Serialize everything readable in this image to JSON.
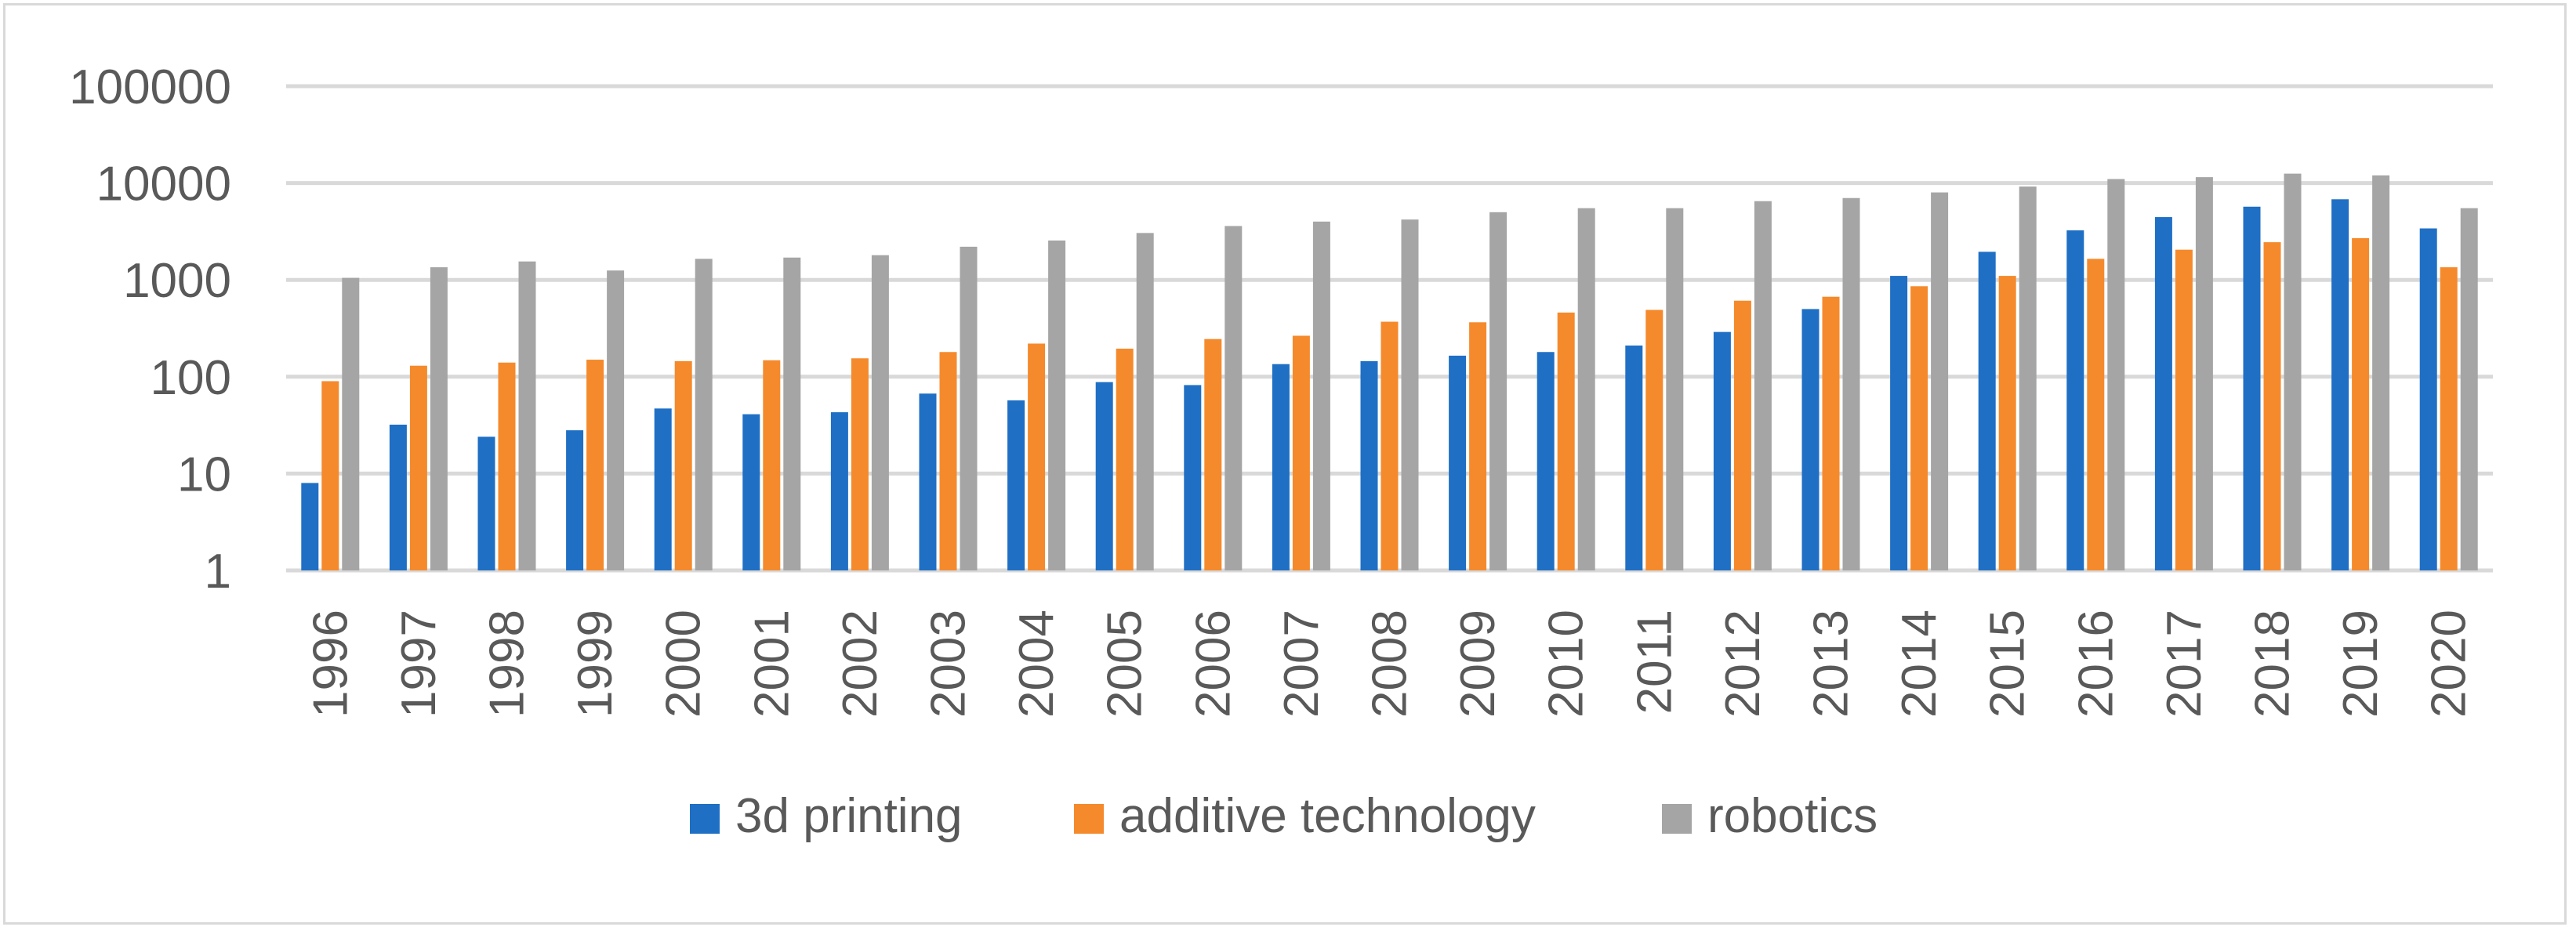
{
  "chart_data": {
    "type": "bar",
    "scale": "log",
    "title": "",
    "xlabel": "",
    "ylabel": "",
    "ylim": [
      1,
      100000
    ],
    "y_ticks": [
      1,
      10,
      100,
      1000,
      10000,
      100000
    ],
    "y_tick_labels": [
      "1",
      "10",
      "100",
      "1000",
      "10000",
      "100000"
    ],
    "grid": true,
    "legend_position": "bottom",
    "categories": [
      "1996",
      "1997",
      "1998",
      "1999",
      "2000",
      "2001",
      "2002",
      "2003",
      "2004",
      "2005",
      "2006",
      "2007",
      "2008",
      "2009",
      "2010",
      "2011",
      "2012",
      "2013",
      "2014",
      "2015",
      "2016",
      "2017",
      "2018",
      "2019",
      "2020"
    ],
    "series": [
      {
        "name": "3d printing",
        "color": "#1f6fc5",
        "values": [
          8,
          32,
          24,
          28,
          47,
          41,
          43,
          67,
          57,
          88,
          82,
          135,
          145,
          165,
          180,
          210,
          290,
          500,
          1100,
          1950,
          3250,
          4450,
          5700,
          6800,
          3400
        ]
      },
      {
        "name": "additive technology",
        "color": "#f58a2c",
        "values": [
          90,
          130,
          140,
          150,
          145,
          148,
          155,
          180,
          220,
          195,
          245,
          265,
          370,
          365,
          460,
          490,
          610,
          670,
          860,
          1100,
          1650,
          2050,
          2450,
          2700,
          1350
        ]
      },
      {
        "name": "robotics",
        "color": "#a5a5a5",
        "values": [
          1050,
          1350,
          1550,
          1250,
          1650,
          1700,
          1800,
          2200,
          2550,
          3050,
          3600,
          4000,
          4200,
          5000,
          5500,
          5500,
          6500,
          7000,
          8000,
          9200,
          11000,
          11500,
          12500,
          12000,
          5500
        ]
      }
    ]
  }
}
